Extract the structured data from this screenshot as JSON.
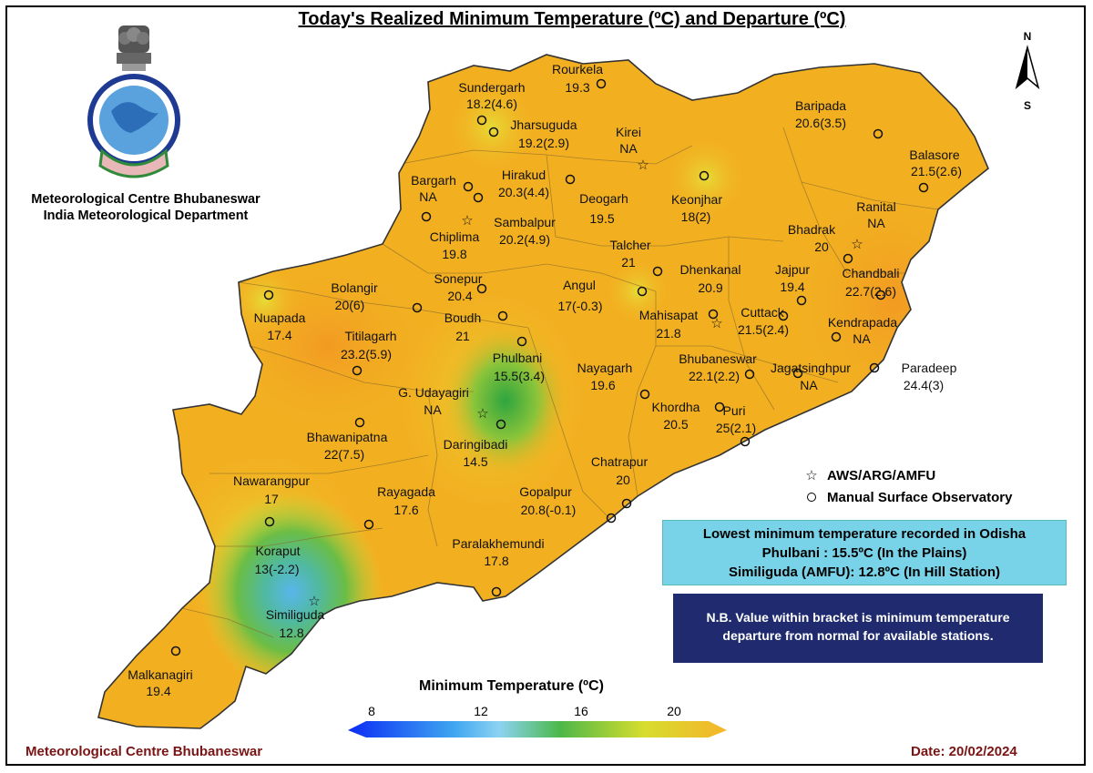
{
  "title": "Today's Realized Minimum Temperature (ºC) and Departure (ºC)",
  "organization": {
    "line1": "Meteorological Centre Bhubaneswar",
    "line2": "India Meteorological Department"
  },
  "compass": {
    "north": "N",
    "south": "S"
  },
  "legend": {
    "aws": {
      "symbol": "☆",
      "label": "AWS/ARG/AMFU"
    },
    "manual": {
      "label": "Manual Surface Observatory"
    }
  },
  "lowest": {
    "line1": "Lowest minimum temperature recorded in Odisha",
    "line2": "Phulbani : 15.5ºC (In the Plains)",
    "line3": "Similiguda (AMFU): 12.8ºC (In Hill Station)"
  },
  "note": {
    "line1": "N.B. Value within bracket is minimum temperature",
    "line2": "departure from normal for available stations."
  },
  "colorbar": {
    "title": "Minimum Temperature (ºC)",
    "ticks": [
      "8",
      "12",
      "16",
      "20"
    ],
    "colors": [
      "#0b2cf5",
      "#3fa6f0",
      "#8cd3f2",
      "#4cb848",
      "#d6dd2e",
      "#f6b42a"
    ]
  },
  "footer": {
    "left": "Meteorological Centre Bhubaneswar",
    "right": "Date: 20/02/2024"
  },
  "stations": [
    {
      "name": "Sundergarh",
      "value": "18.2(4.6)",
      "type": "manual"
    },
    {
      "name": "Rourkela",
      "value": "19.3",
      "type": "manual"
    },
    {
      "name": "Jharsuguda",
      "value": "19.2(2.9)",
      "type": "manual"
    },
    {
      "name": "Kirei",
      "value": "NA",
      "type": "aws"
    },
    {
      "name": "Baripada",
      "value": "20.6(3.5)",
      "type": "manual"
    },
    {
      "name": "Balasore",
      "value": "21.5(2.6)",
      "type": "manual"
    },
    {
      "name": "Bargarh",
      "value": "NA",
      "type": "manual"
    },
    {
      "name": "Hirakud",
      "value": "20.3(4.4)",
      "type": "manual"
    },
    {
      "name": "Deogarh",
      "value": "19.5",
      "type": "manual"
    },
    {
      "name": "Keonjhar",
      "value": "18(2)",
      "type": "manual"
    },
    {
      "name": "Ranital",
      "value": "NA",
      "type": "aws"
    },
    {
      "name": "Chiplima",
      "value": "19.8",
      "type": "aws"
    },
    {
      "name": "Sambalpur",
      "value": "20.2(4.9)",
      "type": "manual"
    },
    {
      "name": "Bhadrak",
      "value": "20",
      "type": "manual"
    },
    {
      "name": "Talcher",
      "value": "21",
      "type": "manual"
    },
    {
      "name": "Dhenkanal",
      "value": "20.9",
      "type": "manual"
    },
    {
      "name": "Jajpur",
      "value": "19.4",
      "type": "manual"
    },
    {
      "name": "Chandbali",
      "value": "22.7(2.6)",
      "type": "manual"
    },
    {
      "name": "Bolangir",
      "value": "20(6)",
      "type": "manual"
    },
    {
      "name": "Sonepur",
      "value": "20.4",
      "type": "manual"
    },
    {
      "name": "Angul",
      "value": "17(-0.3)",
      "type": "manual"
    },
    {
      "name": "Nuapada",
      "value": "17.4",
      "type": "manual"
    },
    {
      "name": "Boudh",
      "value": "21",
      "type": "manual"
    },
    {
      "name": "Mahisapat",
      "value": "21.8",
      "type": "aws"
    },
    {
      "name": "Cuttack",
      "value": "21.5(2.4)",
      "type": "manual"
    },
    {
      "name": "Kendrapada",
      "value": "NA",
      "type": "manual"
    },
    {
      "name": "Titilagarh",
      "value": "23.2(5.9)",
      "type": "manual"
    },
    {
      "name": "Phulbani",
      "value": "15.5(3.4)",
      "type": "manual"
    },
    {
      "name": "Nayagarh",
      "value": "19.6",
      "type": "manual"
    },
    {
      "name": "Bhubaneswar",
      "value": "22.1(2.2)",
      "type": "manual"
    },
    {
      "name": "Jagatsinghpur",
      "value": "NA",
      "type": "manual"
    },
    {
      "name": "Paradeep",
      "value": "24.4(3)",
      "type": "manual"
    },
    {
      "name": "G. Udayagiri",
      "value": "NA",
      "type": "aws"
    },
    {
      "name": "Khordha",
      "value": "20.5",
      "type": "manual"
    },
    {
      "name": "Puri",
      "value": "25(2.1)",
      "type": "manual"
    },
    {
      "name": "Bhawanipatna",
      "value": "22(7.5)",
      "type": "manual"
    },
    {
      "name": "Daringibadi",
      "value": "14.5",
      "type": "manual"
    },
    {
      "name": "Chatrapur",
      "value": "20",
      "type": "manual"
    },
    {
      "name": "Nawarangpur",
      "value": "17",
      "type": "manual"
    },
    {
      "name": "Rayagada",
      "value": "17.6",
      "type": "manual"
    },
    {
      "name": "Gopalpur",
      "value": "20.8(-0.1)",
      "type": "manual"
    },
    {
      "name": "Koraput",
      "value": "13(-2.2)",
      "type": "manual"
    },
    {
      "name": "Paralakhemundi",
      "value": "17.8",
      "type": "manual"
    },
    {
      "name": "Similiguda",
      "value": "12.8",
      "type": "aws"
    },
    {
      "name": "Malkanagiri",
      "value": "19.4",
      "type": "manual"
    }
  ]
}
